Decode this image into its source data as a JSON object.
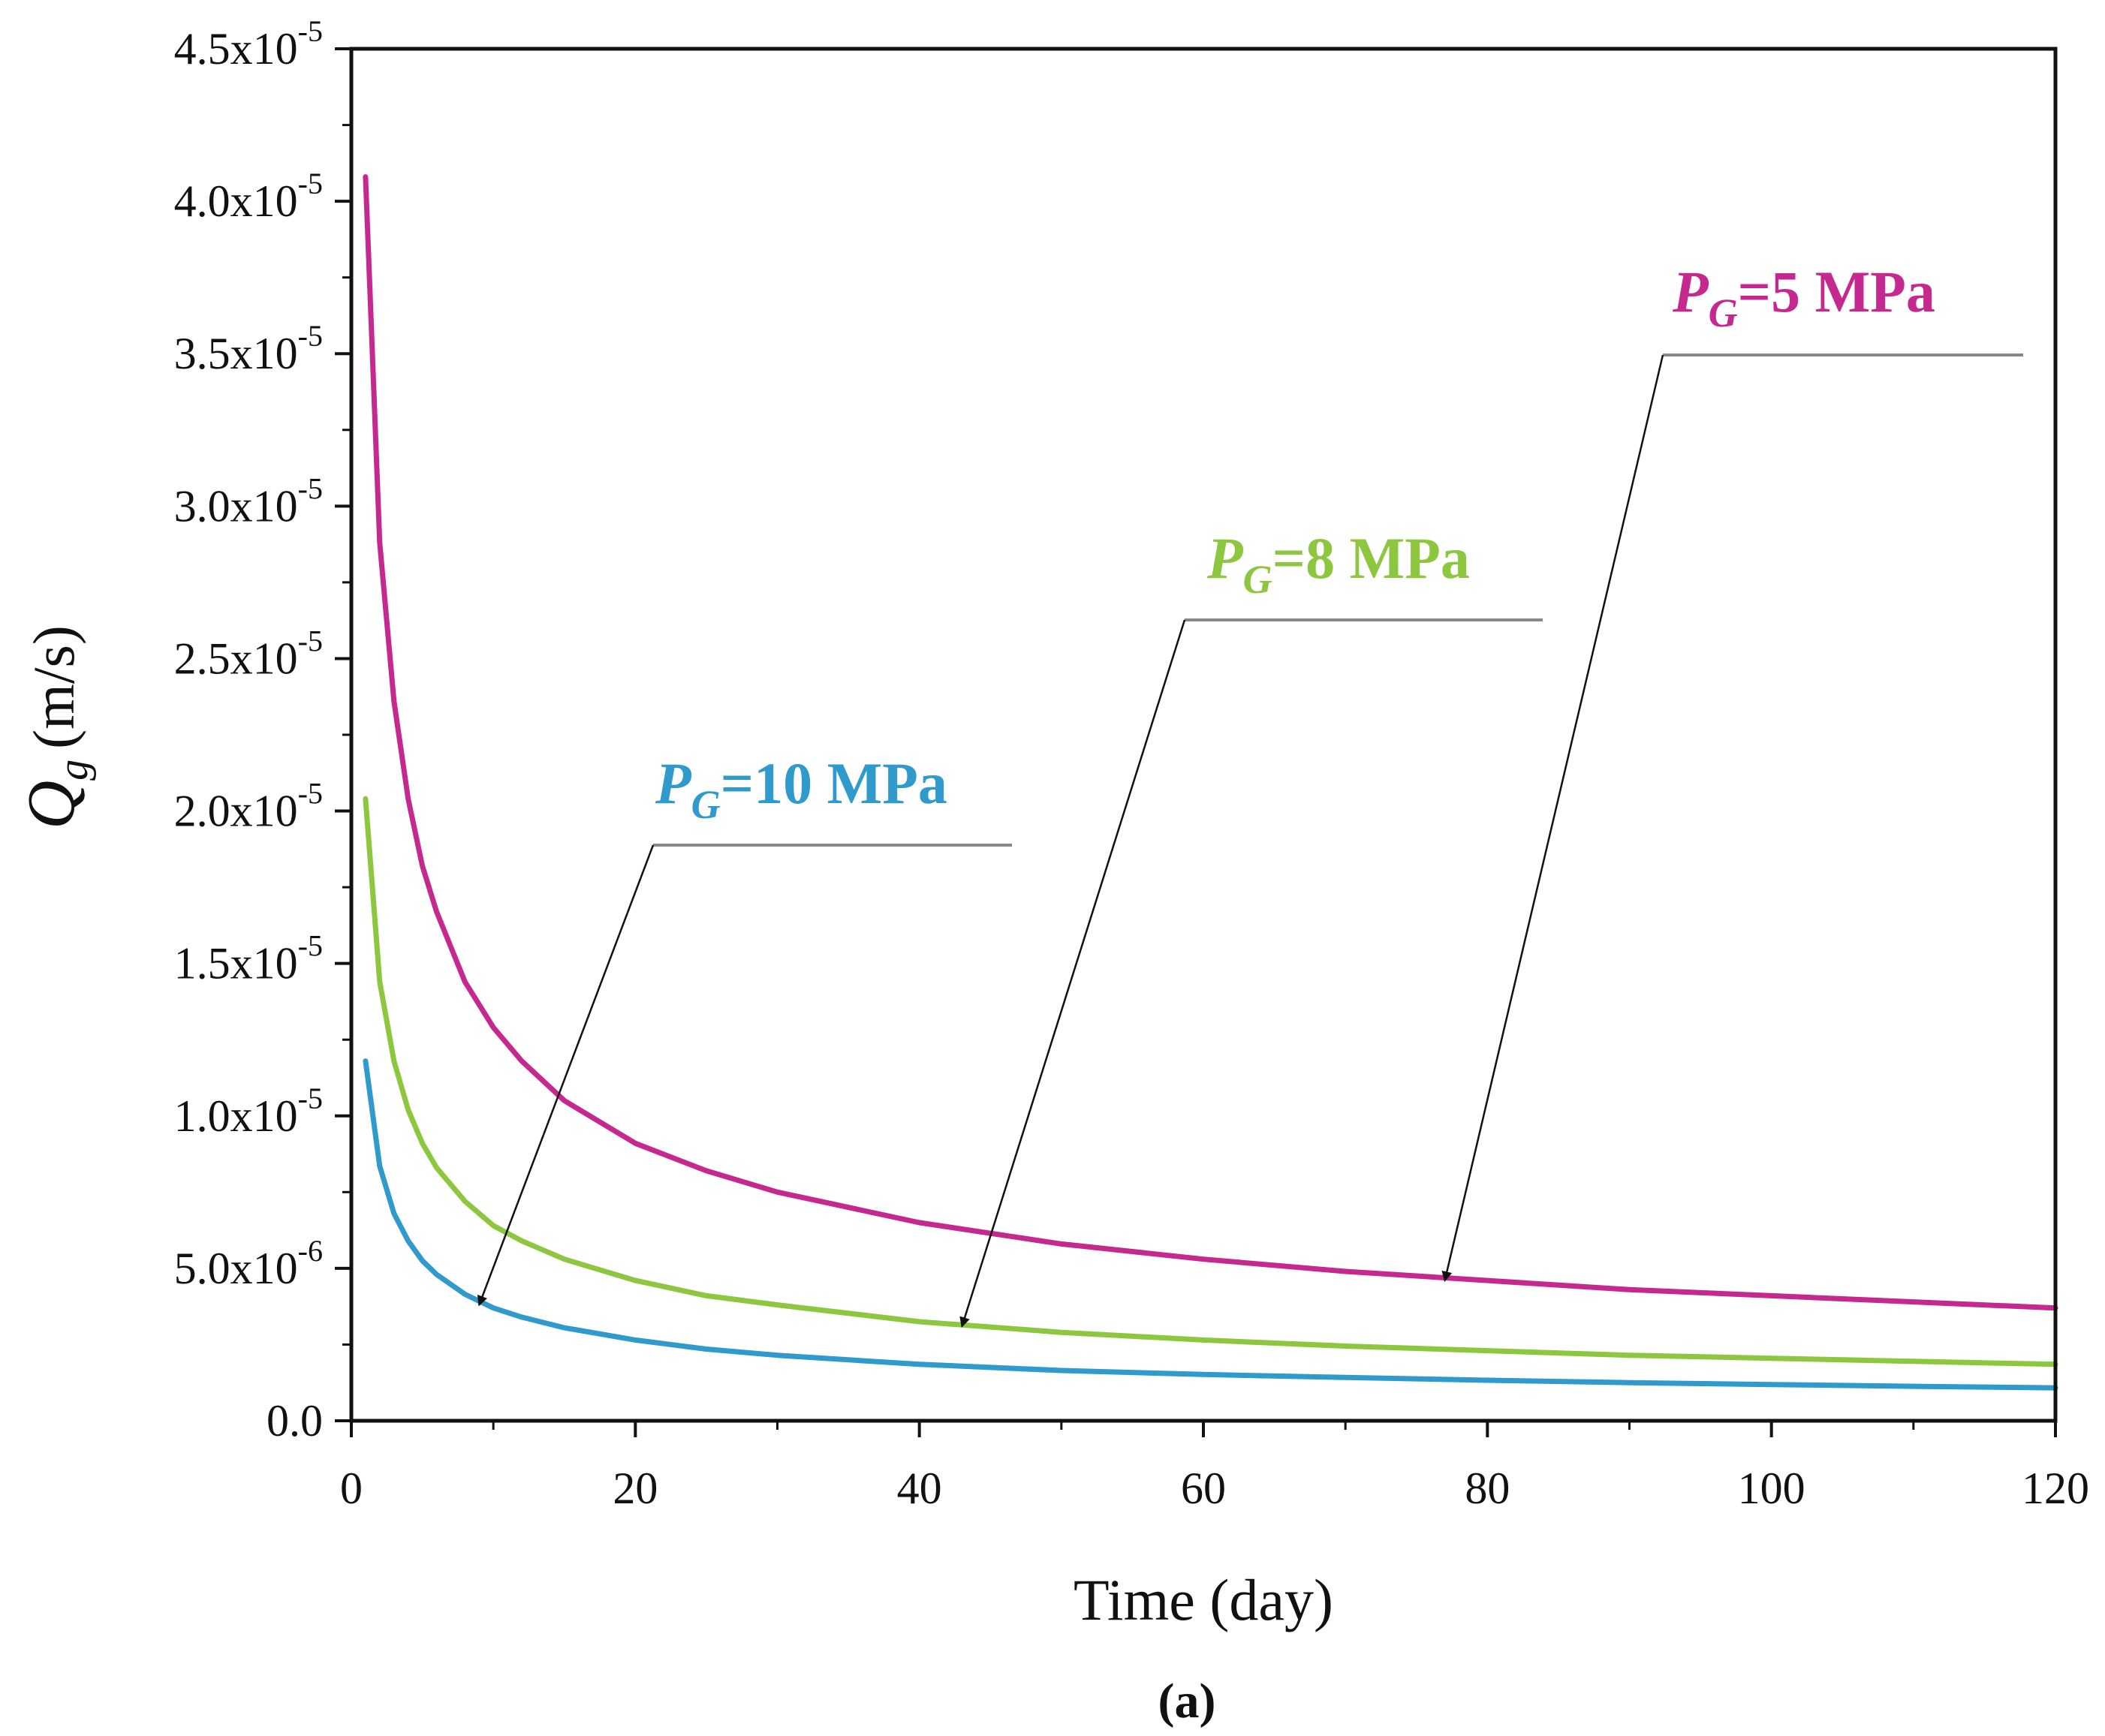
{
  "chart_data": {
    "type": "line",
    "xlabel": "Time (day)",
    "ylabel_symbol": "Q",
    "ylabel_subscript": "g",
    "ylabel_unit": "(m/s)",
    "caption": "(a)",
    "xlim": [
      0,
      120
    ],
    "ylim": [
      0,
      4.5e-05
    ],
    "xticks": [
      {
        "value": 0,
        "label": "0"
      },
      {
        "value": 20,
        "label": "20"
      },
      {
        "value": 40,
        "label": "40"
      },
      {
        "value": 60,
        "label": "60"
      },
      {
        "value": 80,
        "label": "80"
      },
      {
        "value": 100,
        "label": "100"
      },
      {
        "value": 120,
        "label": "120"
      }
    ],
    "yticks": [
      {
        "value": 0,
        "mantissa": "0.0",
        "exponent": ""
      },
      {
        "value": 5e-06,
        "mantissa": "5.0x10",
        "exponent": "-6"
      },
      {
        "value": 1e-05,
        "mantissa": "1.0x10",
        "exponent": "-5"
      },
      {
        "value": 1.5e-05,
        "mantissa": "1.5x10",
        "exponent": "-5"
      },
      {
        "value": 2e-05,
        "mantissa": "2.0x10",
        "exponent": "-5"
      },
      {
        "value": 2.5e-05,
        "mantissa": "2.5x10",
        "exponent": "-5"
      },
      {
        "value": 3e-05,
        "mantissa": "3.0x10",
        "exponent": "-5"
      },
      {
        "value": 3.5e-05,
        "mantissa": "3.5x10",
        "exponent": "-5"
      },
      {
        "value": 4e-05,
        "mantissa": "4.0x10",
        "exponent": "-5"
      },
      {
        "value": 4.5e-05,
        "mantissa": "4.5x10",
        "exponent": "-5"
      }
    ],
    "x": [
      1,
      2,
      3,
      4,
      5,
      6,
      8,
      10,
      12,
      15,
      20,
      25,
      30,
      40,
      50,
      60,
      70,
      80,
      90,
      100,
      110,
      120
    ],
    "series": [
      {
        "name": "P_G=5 MPa",
        "symbol": "P",
        "subscript": "G",
        "value_text": "=5 MPa",
        "color": "#c5288f",
        "values": [
          4.08e-05,
          2.88e-05,
          2.36e-05,
          2.04e-05,
          1.82e-05,
          1.67e-05,
          1.44e-05,
          1.29e-05,
          1.18e-05,
          1.05e-05,
          9.1e-06,
          8.2e-06,
          7.5e-06,
          6.5e-06,
          5.8e-06,
          5.3e-06,
          4.9e-06,
          4.6e-06,
          4.3e-06,
          4.1e-06,
          3.9e-06,
          3.7e-06
        ],
        "arrow_target": [
          77,
          4.6e-06
        ]
      },
      {
        "name": "P_G=8 MPa",
        "symbol": "P",
        "subscript": "G",
        "value_text": "=8 MPa",
        "color": "#8dc63f",
        "values": [
          2.04e-05,
          1.44e-05,
          1.18e-05,
          1.02e-05,
          9.1e-06,
          8.3e-06,
          7.2e-06,
          6.4e-06,
          5.9e-06,
          5.3e-06,
          4.6e-06,
          4.1e-06,
          3.8e-06,
          3.25e-06,
          2.9e-06,
          2.65e-06,
          2.45e-06,
          2.3e-06,
          2.15e-06,
          2.05e-06,
          1.95e-06,
          1.85e-06
        ],
        "arrow_target": [
          43,
          3.1e-06
        ]
      },
      {
        "name": "P_G=10 MPa",
        "symbol": "P",
        "subscript": "G",
        "value_text": "=10 MPa",
        "color": "#2f9acb",
        "values": [
          1.18e-05,
          8.35e-06,
          6.8e-06,
          5.9e-06,
          5.25e-06,
          4.8e-06,
          4.15e-06,
          3.7e-06,
          3.4e-06,
          3.05e-06,
          2.65e-06,
          2.35e-06,
          2.15e-06,
          1.85e-06,
          1.65e-06,
          1.52e-06,
          1.42e-06,
          1.33e-06,
          1.25e-06,
          1.19e-06,
          1.13e-06,
          1.08e-06
        ],
        "arrow_target": [
          9,
          3.8e-06
        ]
      }
    ]
  }
}
